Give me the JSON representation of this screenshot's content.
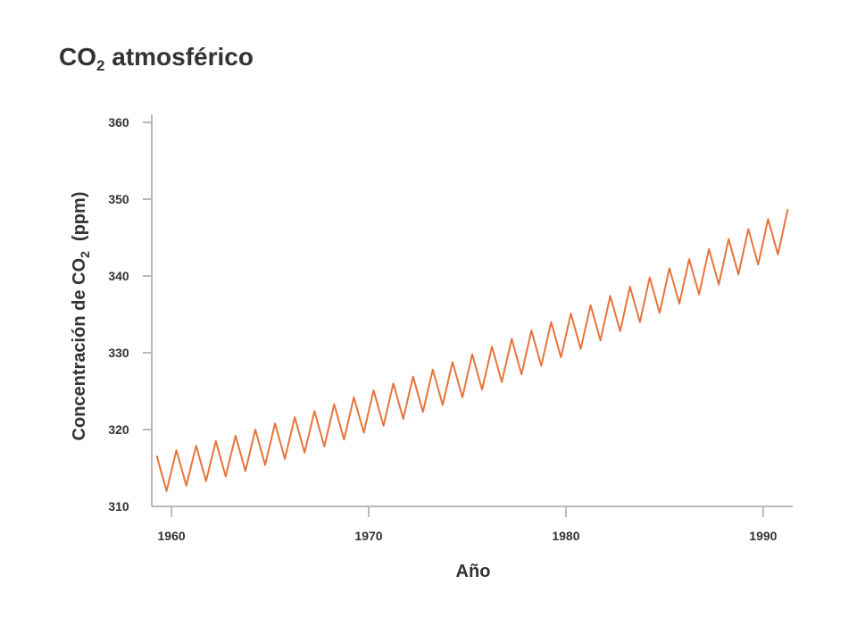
{
  "chart_data": {
    "type": "line",
    "title": "CO",
    "title_subscript": "2",
    "title_rest": " atmosférico",
    "xlabel": "Año",
    "ylabel_main": "Concentración de CO",
    "ylabel_subscript": "2",
    "ylabel_rest": "  (ppm)",
    "xlim": [
      1959.0,
      1991.5
    ],
    "ylim": [
      310,
      360
    ],
    "x_ticks": [
      {
        "value": 1960,
        "label": "1960"
      },
      {
        "value": 1970,
        "label": "1970"
      },
      {
        "value": 1980,
        "label": "1980"
      },
      {
        "value": 1990,
        "label": "1990"
      }
    ],
    "y_ticks": [
      {
        "value": 310,
        "label": "310"
      },
      {
        "value": 320,
        "label": "320"
      },
      {
        "value": 330,
        "label": "330"
      },
      {
        "value": 340,
        "label": "340"
      },
      {
        "value": 350,
        "label": "350"
      },
      {
        "value": 360,
        "label": "360"
      }
    ],
    "grid": false,
    "series": [
      {
        "name": "CO2",
        "color": "#e8743b",
        "x": [
          1959.25,
          1959.75,
          1960.25,
          1960.75,
          1961.25,
          1961.75,
          1962.25,
          1962.75,
          1963.25,
          1963.75,
          1964.25,
          1964.75,
          1965.25,
          1965.75,
          1966.25,
          1966.75,
          1967.25,
          1967.75,
          1968.25,
          1968.75,
          1969.25,
          1969.75,
          1970.25,
          1970.75,
          1971.25,
          1971.75,
          1972.25,
          1972.75,
          1973.25,
          1973.75,
          1974.25,
          1974.75,
          1975.25,
          1975.75,
          1976.25,
          1976.75,
          1977.25,
          1977.75,
          1978.25,
          1978.75,
          1979.25,
          1979.75,
          1980.25,
          1980.75,
          1981.25,
          1981.75,
          1982.25,
          1982.75,
          1983.25,
          1983.75,
          1984.25,
          1984.75,
          1985.25,
          1985.75,
          1986.25,
          1986.75,
          1987.25,
          1987.75,
          1988.25,
          1988.75,
          1989.25,
          1989.75,
          1990.25,
          1990.75,
          1991.25
        ],
        "values": [
          316.6,
          312.0,
          317.3,
          312.7,
          317.9,
          313.3,
          318.5,
          313.9,
          319.2,
          314.6,
          320.0,
          315.4,
          320.8,
          316.2,
          321.6,
          317.0,
          322.4,
          317.8,
          323.3,
          318.7,
          324.2,
          319.6,
          325.1,
          320.5,
          326.0,
          321.4,
          326.9,
          322.3,
          327.8,
          323.2,
          328.8,
          324.2,
          329.8,
          325.2,
          330.8,
          326.2,
          331.8,
          327.2,
          332.9,
          328.3,
          334.0,
          329.4,
          335.1,
          330.5,
          336.2,
          331.6,
          337.4,
          332.8,
          338.6,
          334.0,
          339.8,
          335.2,
          341.0,
          336.4,
          342.2,
          337.6,
          343.5,
          338.9,
          344.8,
          340.2,
          346.1,
          341.5,
          347.4,
          342.8,
          348.7
        ]
      }
    ]
  }
}
